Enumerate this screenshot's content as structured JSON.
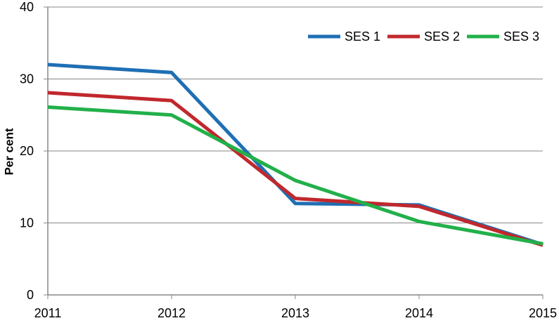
{
  "chart_data": {
    "type": "line",
    "title": "",
    "xlabel": "",
    "ylabel": "Per cent",
    "x": [
      "2011",
      "2012",
      "2013",
      "2014",
      "2015"
    ],
    "ylim": [
      0,
      40
    ],
    "yticks": [
      "0",
      "10",
      "20",
      "30",
      "40"
    ],
    "grid": true,
    "legend_position": "top-right",
    "series": [
      {
        "name": "SES 1",
        "color": "#1f6fb4",
        "values": [
          32.0,
          30.9,
          12.7,
          12.5,
          7.0
        ]
      },
      {
        "name": "SES 2",
        "color": "#c0282d",
        "values": [
          28.1,
          27.0,
          13.4,
          12.3,
          6.9
        ]
      },
      {
        "name": "SES 3",
        "color": "#22b04a",
        "values": [
          26.1,
          25.0,
          15.9,
          10.2,
          7.1
        ]
      }
    ]
  }
}
